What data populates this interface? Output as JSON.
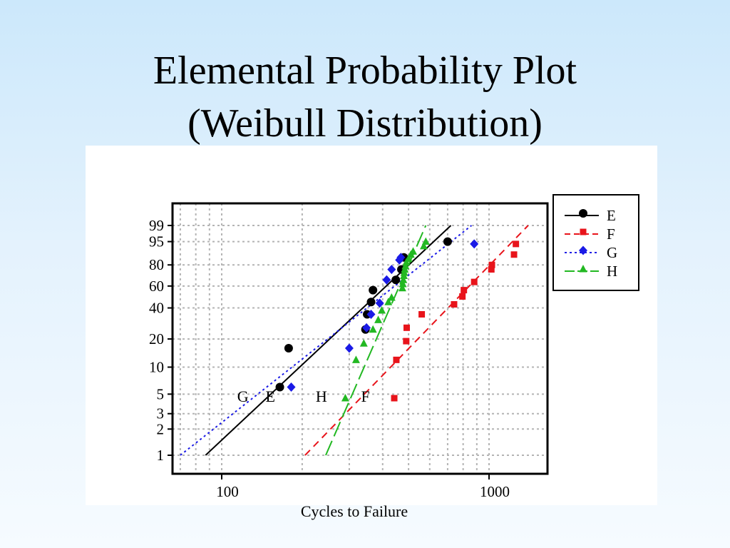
{
  "slide": {
    "title_line1": "Elemental Probability Plot",
    "title_line2": "(Weibull Distribution)"
  },
  "colors": {
    "E": "#000000",
    "F": "#e8141b",
    "G": "#1a1ae6",
    "H": "#22b822",
    "grid": "#b4b4b4",
    "background_top": "#cce8fb",
    "background_bottom": "#f6fbff"
  },
  "chart_data": {
    "type": "scatter",
    "scale": "weibull probability plot",
    "xlabel": "Cycles to Failure",
    "ylabel": "",
    "x_scale": "log",
    "xlim": [
      62,
      2000
    ],
    "ylim_percent": [
      0.8,
      99.9
    ],
    "x_ticks": [
      {
        "value": 100,
        "label": "100"
      },
      {
        "value": 1000,
        "label": "1000"
      }
    ],
    "y_ticks": [
      {
        "value": 1,
        "label": "1"
      },
      {
        "value": 2,
        "label": "2"
      },
      {
        "value": 3,
        "label": "3"
      },
      {
        "value": 5,
        "label": "5"
      },
      {
        "value": 10,
        "label": "10"
      },
      {
        "value": 20,
        "label": "20"
      },
      {
        "value": 40,
        "label": "40"
      },
      {
        "value": 60,
        "label": "60"
      },
      {
        "value": 80,
        "label": "80"
      },
      {
        "value": 95,
        "label": "95"
      },
      {
        "value": 99,
        "label": "99"
      }
    ],
    "x_gridlines": [
      70,
      80,
      90,
      100,
      200,
      300,
      400,
      500,
      600,
      700,
      800,
      900,
      1000,
      2000
    ],
    "grid": true,
    "legend_position": "top-right, outside plot",
    "series": [
      {
        "name": "E",
        "marker": "circle",
        "line": "solid",
        "points": [
          [
            165,
            6
          ],
          [
            178,
            16
          ],
          [
            345,
            25
          ],
          [
            350,
            35
          ],
          [
            362,
            45
          ],
          [
            368,
            56
          ],
          [
            448,
            66
          ],
          [
            470,
            76
          ],
          [
            480,
            86
          ],
          [
            700,
            95
          ]
        ],
        "fit_line": [
          [
            87,
            1
          ],
          [
            720,
            99
          ]
        ]
      },
      {
        "name": "F",
        "marker": "square",
        "line": "dashed",
        "points": [
          [
            442,
            4.5
          ],
          [
            450,
            12
          ],
          [
            490,
            19
          ],
          [
            492,
            26
          ],
          [
            560,
            35
          ],
          [
            740,
            43
          ],
          [
            795,
            50
          ],
          [
            805,
            56
          ],
          [
            880,
            64
          ],
          [
            1020,
            76
          ],
          [
            1025,
            80
          ],
          [
            1240,
            88
          ],
          [
            1260,
            94
          ]
        ],
        "fit_line": [
          [
            205,
            1
          ],
          [
            1400,
            99
          ]
        ]
      },
      {
        "name": "G",
        "marker": "diamond",
        "line": "dotted",
        "points": [
          [
            182,
            6
          ],
          [
            300,
            16
          ],
          [
            348,
            26
          ],
          [
            362,
            35
          ],
          [
            390,
            44
          ],
          [
            414,
            66
          ],
          [
            432,
            76
          ],
          [
            462,
            84
          ],
          [
            468,
            86
          ],
          [
            880,
            94
          ]
        ],
        "fit_line": [
          [
            70,
            1
          ],
          [
            860,
            99
          ]
        ]
      },
      {
        "name": "H",
        "marker": "triangle",
        "line": "long-dash",
        "points": [
          [
            290,
            4.5
          ],
          [
            318,
            12
          ],
          [
            340,
            18
          ],
          [
            368,
            25
          ],
          [
            385,
            31
          ],
          [
            397,
            38
          ],
          [
            420,
            45
          ],
          [
            432,
            49
          ],
          [
            474,
            58
          ],
          [
            476,
            62
          ],
          [
            478,
            66
          ],
          [
            480,
            70
          ],
          [
            482,
            73
          ],
          [
            484,
            76
          ],
          [
            487,
            79
          ],
          [
            490,
            82
          ],
          [
            500,
            85
          ],
          [
            510,
            88
          ],
          [
            520,
            90
          ],
          [
            570,
            93
          ],
          [
            580,
            95
          ]
        ],
        "fit_line": [
          [
            245,
            1
          ],
          [
            580,
            99
          ]
        ]
      }
    ],
    "annotations": [
      {
        "text": "G",
        "x": 120,
        "y": 4.1
      },
      {
        "text": "E",
        "x": 152,
        "y": 4.1
      },
      {
        "text": "H",
        "x": 236,
        "y": 4.1
      },
      {
        "text": "F",
        "x": 345,
        "y": 4.1
      }
    ],
    "legend": [
      "E",
      "F",
      "G",
      "H"
    ]
  }
}
